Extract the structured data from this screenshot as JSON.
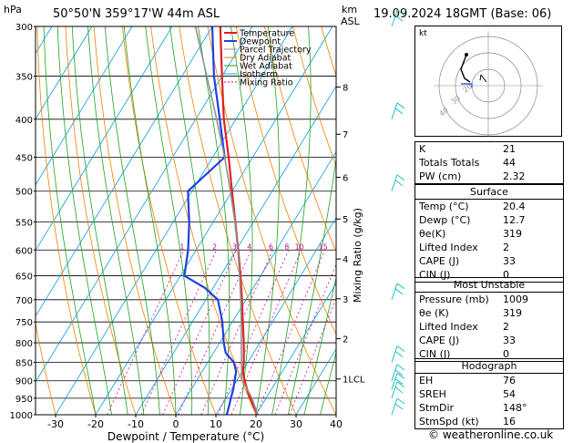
{
  "header": {
    "hpa_label": "hPa",
    "location": "50°50'N  359°17'W  44m  ASL",
    "km_label": "km",
    "asl_label": "ASL",
    "datetime": "19.09.2024  18GMT  (Base: 06)"
  },
  "chart_data": {
    "type": "line",
    "subtype": "skew-t log-p",
    "xlabel": "Dewpoint / Temperature (°C)",
    "ylabel": "hPa",
    "mixing_ratio_axis_label": "Mixing Ratio (g/kg)",
    "xlim": [
      -35,
      40
    ],
    "ylim": [
      1000,
      300
    ],
    "x_ticks": [
      -30,
      -20,
      -10,
      0,
      10,
      20,
      30,
      40
    ],
    "pressure_levels": [
      300,
      350,
      400,
      450,
      500,
      550,
      600,
      650,
      700,
      750,
      800,
      850,
      900,
      950,
      1000
    ],
    "km_ticks": [
      {
        "label": "8",
        "p": 362
      },
      {
        "label": "7",
        "p": 419
      },
      {
        "label": "6",
        "p": 479
      },
      {
        "label": "5",
        "p": 545
      },
      {
        "label": "4",
        "p": 617
      },
      {
        "label": "3",
        "p": 698
      },
      {
        "label": "2",
        "p": 790
      },
      {
        "label": "1LCL",
        "p": 895
      }
    ],
    "mixing_ratio_labels": [
      "1",
      "2",
      "3",
      "4",
      "6",
      "8",
      "10",
      "15",
      "20",
      "25"
    ],
    "mixing_ratio_values": [
      1,
      2,
      3,
      4,
      6,
      8,
      10,
      15,
      20,
      25
    ],
    "legend": {
      "position": "top-left inside plot",
      "entries": [
        {
          "name": "Temperature",
          "color": "#e02020"
        },
        {
          "name": "Dewpoint",
          "color": "#2040e0"
        },
        {
          "name": "Parcel Trajectory",
          "color": "#909090"
        },
        {
          "name": "Dry Adiabat",
          "color": "#f08000"
        },
        {
          "name": "Wet Adiabat",
          "color": "#20a020"
        },
        {
          "name": "Isotherm",
          "color": "#00a0e0"
        },
        {
          "name": "Mixing Ratio",
          "color": "#d000a0"
        }
      ]
    },
    "series": [
      {
        "name": "Temperature",
        "points": [
          [
            1000,
            20.4
          ],
          [
            975,
            18.2
          ],
          [
            950,
            16.0
          ],
          [
            925,
            14.0
          ],
          [
            900,
            12.0
          ],
          [
            875,
            10.2
          ],
          [
            850,
            9.0
          ],
          [
            800,
            6.0
          ],
          [
            750,
            2.6
          ],
          [
            700,
            -1.0
          ],
          [
            650,
            -5.0
          ],
          [
            600,
            -9.5
          ],
          [
            550,
            -14.5
          ],
          [
            500,
            -20.0
          ],
          [
            450,
            -26.0
          ],
          [
            400,
            -33.0
          ],
          [
            350,
            -40.0
          ],
          [
            300,
            -48.0
          ]
        ]
      },
      {
        "name": "Dewpoint",
        "points": [
          [
            1000,
            12.7
          ],
          [
            975,
            12.0
          ],
          [
            950,
            11.2
          ],
          [
            925,
            10.5
          ],
          [
            900,
            9.5
          ],
          [
            875,
            8.5
          ],
          [
            850,
            6.5
          ],
          [
            825,
            3.0
          ],
          [
            800,
            1.0
          ],
          [
            750,
            -2.5
          ],
          [
            700,
            -7.0
          ],
          [
            675,
            -12.0
          ],
          [
            650,
            -19.0
          ],
          [
            600,
            -22.0
          ],
          [
            550,
            -26.0
          ],
          [
            500,
            -31.0
          ],
          [
            450,
            -27.0
          ],
          [
            400,
            -34.0
          ],
          [
            350,
            -42.0
          ],
          [
            300,
            -50.0
          ]
        ]
      },
      {
        "name": "Parcel Trajectory",
        "points": [
          [
            1000,
            20.4
          ],
          [
            950,
            16.5
          ],
          [
            895,
            11.0
          ],
          [
            850,
            8.4
          ],
          [
            800,
            5.4
          ],
          [
            750,
            2.2
          ],
          [
            700,
            -1.3
          ],
          [
            650,
            -5.2
          ],
          [
            600,
            -9.6
          ],
          [
            550,
            -14.6
          ],
          [
            500,
            -20.4
          ],
          [
            450,
            -27.0
          ],
          [
            400,
            -34.8
          ],
          [
            350,
            -43.8
          ],
          [
            300,
            -54.2
          ]
        ]
      }
    ],
    "wind_barbs_pressure": [
      300,
      400,
      500,
      700,
      850,
      900,
      925,
      950,
      1000
    ]
  },
  "hodograph": {
    "label": "kt",
    "ring_labels": [
      "40",
      "30",
      "20"
    ]
  },
  "indices": {
    "rows": [
      {
        "label": "K",
        "value": "21"
      },
      {
        "label": "Totals Totals",
        "value": "44"
      },
      {
        "label": "PW (cm)",
        "value": "2.32"
      }
    ]
  },
  "surface": {
    "title": "Surface",
    "rows": [
      {
        "label": "Temp (°C)",
        "value": "20.4"
      },
      {
        "label": "Dewp (°C)",
        "value": "12.7"
      },
      {
        "label": "θe(K)",
        "value": "319"
      },
      {
        "label": "Lifted Index",
        "value": "2"
      },
      {
        "label": "CAPE (J)",
        "value": "33"
      },
      {
        "label": "CIN (J)",
        "value": "0"
      }
    ]
  },
  "most_unstable": {
    "title": "Most Unstable",
    "rows": [
      {
        "label": "Pressure (mb)",
        "value": "1009"
      },
      {
        "label": "θe (K)",
        "value": "319"
      },
      {
        "label": "Lifted Index",
        "value": "2"
      },
      {
        "label": "CAPE (J)",
        "value": "33"
      },
      {
        "label": "CIN (J)",
        "value": "0"
      }
    ]
  },
  "hodograph_table": {
    "title": "Hodograph",
    "rows": [
      {
        "label": "EH",
        "value": "76"
      },
      {
        "label": "SREH",
        "value": "54"
      },
      {
        "label": "StmDir",
        "value": "148°"
      },
      {
        "label": "StmSpd (kt)",
        "value": "16"
      }
    ]
  },
  "credit": "© weatheronline.co.uk",
  "colors": {
    "temperature": "#e02020",
    "dewpoint": "#2040e0",
    "parcel": "#909090",
    "dry_adiabat": "#f08000",
    "wet_adiabat": "#20a020",
    "isotherm": "#00a0e0",
    "mixing_ratio": "#d000a0",
    "barb": "#20c0c0"
  }
}
